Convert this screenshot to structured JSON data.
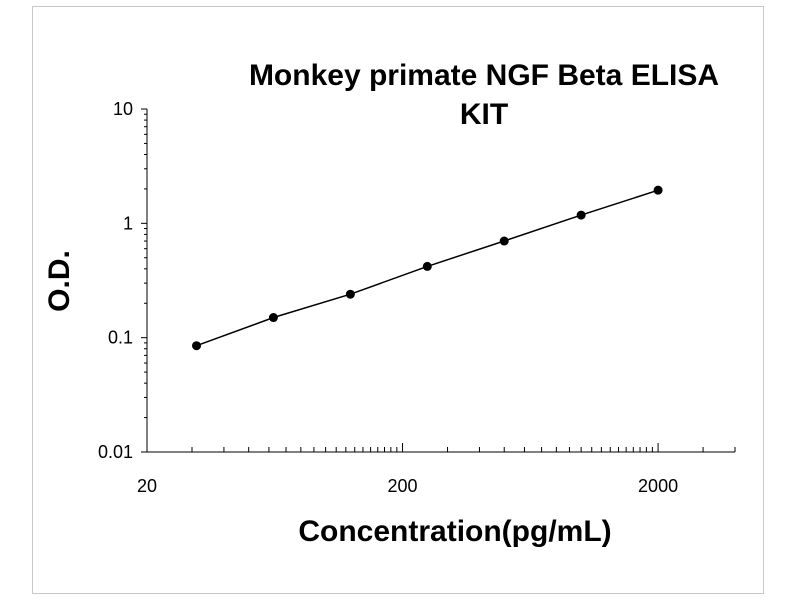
{
  "chart_data": {
    "type": "scatter",
    "title_lines": [
      "Monkey primate NGF Beta ELISA",
      "KIT"
    ],
    "xlabel": "Concentration(pg/mL)",
    "ylabel": "O.D.",
    "x_scale": "log",
    "y_scale": "log",
    "xlim": [
      20,
      4000
    ],
    "ylim": [
      0.01,
      10
    ],
    "x_ticks": [
      "20",
      "200",
      "2000"
    ],
    "y_ticks": [
      "0.01",
      "0.1",
      "1",
      "10"
    ],
    "grid": false,
    "legend": "none",
    "series": [
      {
        "x": [
          31.25,
          62.5,
          125,
          250,
          500,
          1000,
          2000
        ],
        "y": [
          0.085,
          0.15,
          0.24,
          0.42,
          0.7,
          1.18,
          1.95
        ]
      }
    ]
  },
  "colors": {
    "line": "#000000",
    "point": "#000000",
    "border": "#c8c8c8"
  }
}
